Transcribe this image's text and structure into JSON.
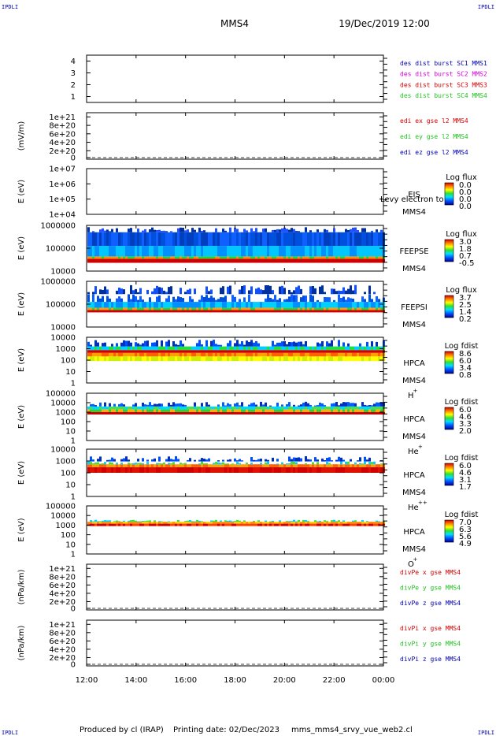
{
  "header": {
    "corner_label": "IPDLI",
    "spacecraft": "MMS4",
    "datetime": "19/Dec/2019 12:00"
  },
  "footer": {
    "produced_by": "Produced by cl (IRAP)",
    "printing_date": "Printing date: 02/Dec/2023",
    "filename": "mms_mms4_srvy_vue_web2.cl"
  },
  "colors": {
    "red": "#d40000",
    "magenta": "#d400d4",
    "green": "#22c022",
    "blue": "#0000b4"
  },
  "chart_data": {
    "x_ticks": [
      "12:00",
      "14:00",
      "16:00",
      "18:00",
      "20:00",
      "22:00",
      "00:00"
    ],
    "xlim": [
      "12:00",
      "00:00"
    ],
    "panels": [
      {
        "type": "line",
        "ylim": [
          0.5,
          4.5
        ],
        "y_ticks": [
          "1",
          "2",
          "3",
          "4"
        ],
        "ylabel": "",
        "legend": [
          {
            "text": "des dist burst SC1 MMS1",
            "color": "blue"
          },
          {
            "text": "des dist burst SC2 MMS2",
            "color": "magenta"
          },
          {
            "text": "des dist burst SC3 MMS3",
            "color": "red"
          },
          {
            "text": "des dist burst SC4 MMS4",
            "color": "green"
          }
        ]
      },
      {
        "type": "line",
        "ylim": [
          0,
          1.1e+21
        ],
        "y_ticks": [
          "0",
          "2e+20",
          "4e+20",
          "6e+20",
          "8e+20",
          "1e+21"
        ],
        "ylabel": "(mV/m)",
        "legend": [
          {
            "text": "edi ex gse l2 MMS4",
            "color": "red"
          },
          {
            "text": "edi ey gse l2 MMS4",
            "color": "green"
          },
          {
            "text": "edi ez gse l2 MMS4",
            "color": "blue"
          }
        ]
      },
      {
        "type": "heatmap",
        "y_scale": "log",
        "ylim": [
          10000.0,
          10000000.0
        ],
        "y_ticks": [
          "1e+04",
          "1e+05",
          "1e+06",
          "1e+07"
        ],
        "ylabel": "E (eV)",
        "instrument": [
          "EIS",
          "MMS4"
        ],
        "overlay_text": "Levy electron to",
        "colorbar_title": "Log flux",
        "colorbar_ticks": [
          "0.0",
          "0.0",
          "0.0",
          "0.0"
        ]
      },
      {
        "type": "heatmap",
        "y_scale": "log",
        "ylim": [
          10000.0,
          1000000.0
        ],
        "y_ticks": [
          "10000",
          "100000",
          "1000000"
        ],
        "ylabel": "E (eV)",
        "instrument": [
          "FEEPSE",
          "MMS4"
        ],
        "colorbar_title": "Log flux",
        "colorbar_ticks": [
          "3.0",
          "1.8",
          "0.7",
          "-0.5"
        ]
      },
      {
        "type": "heatmap",
        "y_scale": "log",
        "ylim": [
          10000.0,
          1000000.0
        ],
        "y_ticks": [
          "10000",
          "100000",
          "1000000"
        ],
        "ylabel": "E (eV)",
        "instrument": [
          "FEEPSI",
          "MMS4"
        ],
        "colorbar_title": "Log flux",
        "colorbar_ticks": [
          "3.7",
          "2.5",
          "1.4",
          "0.2"
        ]
      },
      {
        "type": "heatmap",
        "y_scale": "log",
        "ylim": [
          1,
          10000.0
        ],
        "y_ticks": [
          "1",
          "10",
          "100",
          "1000",
          "10000"
        ],
        "ylabel": "E (eV)",
        "instrument": [
          "HPCA",
          "MMS4"
        ],
        "species": "H",
        "species_sup": "+",
        "colorbar_title": "Log fdist",
        "colorbar_ticks": [
          "8.6",
          "6.0",
          "3.4",
          "0.8"
        ]
      },
      {
        "type": "heatmap",
        "y_scale": "log",
        "ylim": [
          1,
          100000.0
        ],
        "y_ticks": [
          "1",
          "10",
          "100",
          "1000",
          "10000",
          "100000"
        ],
        "ylabel": "E (eV)",
        "instrument": [
          "HPCA",
          "MMS4"
        ],
        "species": "He",
        "species_sup": "+",
        "colorbar_title": "Log fdist",
        "colorbar_ticks": [
          "6.0",
          "4.6",
          "3.3",
          "2.0"
        ]
      },
      {
        "type": "heatmap",
        "y_scale": "log",
        "ylim": [
          1,
          10000.0
        ],
        "y_ticks": [
          "1",
          "10",
          "100",
          "1000",
          "10000"
        ],
        "ylabel": "E (eV)",
        "instrument": [
          "HPCA",
          "MMS4"
        ],
        "species": "He",
        "species_sup": "++",
        "colorbar_title": "Log fdist",
        "colorbar_ticks": [
          "6.0",
          "4.6",
          "3.1",
          "1.7"
        ]
      },
      {
        "type": "heatmap",
        "y_scale": "log",
        "ylim": [
          1,
          100000.0
        ],
        "y_ticks": [
          "1",
          "10",
          "100",
          "1000",
          "10000",
          "100000"
        ],
        "ylabel": "E (eV)",
        "instrument": [
          "HPCA",
          "MMS4"
        ],
        "species": "O",
        "species_sup": "+",
        "colorbar_title": "Log fdist",
        "colorbar_ticks": [
          "7.0",
          "6.3",
          "5.6",
          "4.9"
        ]
      },
      {
        "type": "line",
        "ylim": [
          0,
          1.1e+21
        ],
        "y_ticks": [
          "0",
          "2e+20",
          "4e+20",
          "6e+20",
          "8e+20",
          "1e+21"
        ],
        "ylabel": "(nPa/km)",
        "legend": [
          {
            "text": "divPe x gse MMS4",
            "color": "red"
          },
          {
            "text": "divPe y gse MMS4",
            "color": "green"
          },
          {
            "text": "divPe z gse MMS4",
            "color": "blue"
          }
        ]
      },
      {
        "type": "line",
        "ylim": [
          0,
          1.1e+21
        ],
        "y_ticks": [
          "0",
          "2e+20",
          "4e+20",
          "6e+20",
          "8e+20",
          "1e+21"
        ],
        "ylabel": "(nPa/km)",
        "legend": [
          {
            "text": "divPi x gse MMS4",
            "color": "red"
          },
          {
            "text": "divPi y gse MMS4",
            "color": "green"
          },
          {
            "text": "divPi z gse MMS4",
            "color": "blue"
          }
        ]
      }
    ]
  }
}
